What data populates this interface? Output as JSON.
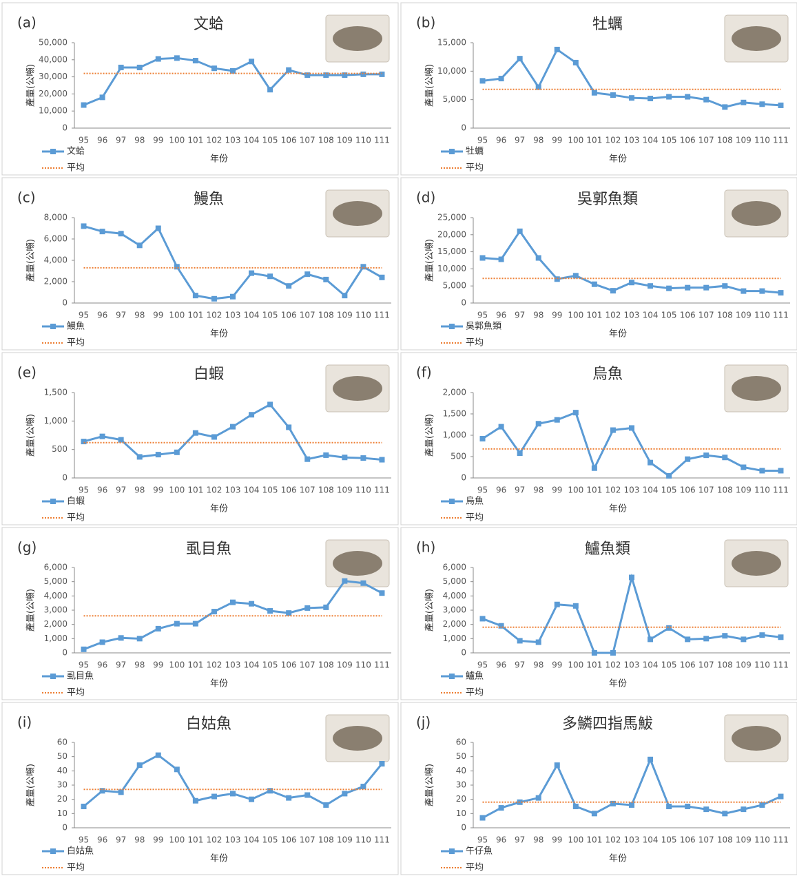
{
  "chart_data": [
    {
      "type": "line",
      "panel": "(a)",
      "title": "文蛤",
      "xlabel": "年份",
      "ylabel": "產量(公噸)",
      "categories": [
        "95",
        "96",
        "97",
        "98",
        "99",
        "100",
        "101",
        "102",
        "103",
        "104",
        "105",
        "106",
        "107",
        "108",
        "109",
        "110",
        "111"
      ],
      "series": [
        {
          "name": "文蛤",
          "color": "#5b9bd5",
          "style": "solid",
          "values": [
            13500,
            18000,
            35500,
            35500,
            40500,
            41000,
            39500,
            35000,
            33500,
            39000,
            22500,
            34000,
            31000,
            31000,
            31000,
            31500,
            31500
          ]
        },
        {
          "name": "平均",
          "color": "#ed7d31",
          "style": "dotted",
          "values": [
            32000,
            32000,
            32000,
            32000,
            32000,
            32000,
            32000,
            32000,
            32000,
            32000,
            32000,
            32000,
            32000,
            32000,
            32000,
            32000,
            32000
          ]
        }
      ],
      "ylim": [
        0,
        50000
      ],
      "yticks": [
        0,
        {
          "value": 10000,
          "label": "10,000"
        },
        {
          "value": 20000,
          "label": "20,000"
        },
        {
          "value": 30000,
          "label": "30,000"
        },
        {
          "value": 40000,
          "label": "40,000"
        },
        {
          "value": 50000,
          "label": "50,000"
        }
      ]
    },
    {
      "type": "line",
      "panel": "(b)",
      "title": "牡蠣",
      "xlabel": "年份",
      "ylabel": "產量(公噸)",
      "categories": [
        "95",
        "96",
        "97",
        "98",
        "99",
        "100",
        "101",
        "102",
        "103",
        "104",
        "105",
        "106",
        "107",
        "108",
        "109",
        "110",
        "111"
      ],
      "series": [
        {
          "name": "牡蠣",
          "color": "#5b9bd5",
          "style": "solid",
          "values": [
            8300,
            8700,
            12200,
            7200,
            13800,
            11500,
            6200,
            5800,
            5300,
            5200,
            5500,
            5500,
            5000,
            3700,
            4500,
            4200,
            4000
          ]
        },
        {
          "name": "平均",
          "color": "#ed7d31",
          "style": "dotted",
          "values": [
            6800,
            6800,
            6800,
            6800,
            6800,
            6800,
            6800,
            6800,
            6800,
            6800,
            6800,
            6800,
            6800,
            6800,
            6800,
            6800,
            6800
          ]
        }
      ],
      "ylim": [
        0,
        15000
      ],
      "yticks": [
        0,
        {
          "value": 5000,
          "label": "5,000"
        },
        {
          "value": 10000,
          "label": "10,000"
        },
        {
          "value": 15000,
          "label": "15,000"
        }
      ]
    },
    {
      "type": "line",
      "panel": "(c)",
      "title": "鰻魚",
      "xlabel": "年份",
      "ylabel": "產量(公噸)",
      "categories": [
        "95",
        "96",
        "97",
        "98",
        "99",
        "100",
        "101",
        "102",
        "103",
        "104",
        "105",
        "106",
        "107",
        "108",
        "109",
        "110",
        "111"
      ],
      "series": [
        {
          "name": "鰻魚",
          "color": "#5b9bd5",
          "style": "solid",
          "values": [
            7200,
            6700,
            6500,
            5400,
            7000,
            3400,
            700,
            400,
            600,
            2800,
            2500,
            1600,
            2700,
            2200,
            700,
            3400,
            2400
          ]
        },
        {
          "name": "平均",
          "color": "#ed7d31",
          "style": "dotted",
          "values": [
            3300,
            3300,
            3300,
            3300,
            3300,
            3300,
            3300,
            3300,
            3300,
            3300,
            3300,
            3300,
            3300,
            3300,
            3300,
            3300,
            3300
          ]
        }
      ],
      "ylim": [
        0,
        8000
      ],
      "yticks": [
        0,
        {
          "value": 2000,
          "label": "2,000"
        },
        {
          "value": 4000,
          "label": "4,000"
        },
        {
          "value": 6000,
          "label": "6,000"
        },
        {
          "value": 8000,
          "label": "8,000"
        }
      ]
    },
    {
      "type": "line",
      "panel": "(d)",
      "title": "吳郭魚類",
      "xlabel": "年份",
      "ylabel": "產量(公噸)",
      "categories": [
        "95",
        "96",
        "97",
        "98",
        "99",
        "100",
        "101",
        "102",
        "103",
        "104",
        "105",
        "106",
        "107",
        "108",
        "109",
        "110",
        "111"
      ],
      "series": [
        {
          "name": "吳郭魚類",
          "color": "#5b9bd5",
          "style": "solid",
          "values": [
            13200,
            12800,
            21000,
            13200,
            7000,
            8000,
            5500,
            3600,
            6000,
            5000,
            4300,
            4500,
            4500,
            5000,
            3500,
            3500,
            3000
          ]
        },
        {
          "name": "平均",
          "color": "#ed7d31",
          "style": "dotted",
          "values": [
            7200,
            7200,
            7200,
            7200,
            7200,
            7200,
            7200,
            7200,
            7200,
            7200,
            7200,
            7200,
            7200,
            7200,
            7200,
            7200,
            7200
          ]
        }
      ],
      "ylim": [
        0,
        25000
      ],
      "yticks": [
        0,
        {
          "value": 5000,
          "label": "5,000"
        },
        {
          "value": 10000,
          "label": "10,000"
        },
        {
          "value": 15000,
          "label": "15,000"
        },
        {
          "value": 20000,
          "label": "20,000"
        },
        {
          "value": 25000,
          "label": "25,000"
        }
      ]
    },
    {
      "type": "line",
      "panel": "(e)",
      "title": "白蝦",
      "xlabel": "年份",
      "ylabel": "產量(公噸)",
      "categories": [
        "95",
        "96",
        "97",
        "98",
        "99",
        "100",
        "101",
        "102",
        "103",
        "104",
        "105",
        "106",
        "107",
        "108",
        "109",
        "110",
        "111"
      ],
      "series": [
        {
          "name": "白蝦",
          "color": "#5b9bd5",
          "style": "solid",
          "values": [
            640,
            730,
            670,
            370,
            410,
            450,
            790,
            720,
            900,
            1110,
            1290,
            890,
            330,
            400,
            360,
            350,
            320
          ]
        },
        {
          "name": "平均",
          "color": "#ed7d31",
          "style": "dotted",
          "values": [
            620,
            620,
            620,
            620,
            620,
            620,
            620,
            620,
            620,
            620,
            620,
            620,
            620,
            620,
            620,
            620,
            620
          ]
        }
      ],
      "ylim": [
        0,
        1500
      ],
      "yticks": [
        0,
        500,
        {
          "value": 1000,
          "label": "1,000"
        },
        {
          "value": 1500,
          "label": "1,500"
        }
      ]
    },
    {
      "type": "line",
      "panel": "(f)",
      "title": "烏魚",
      "xlabel": "年份",
      "ylabel": "產量(公噸)",
      "categories": [
        "95",
        "96",
        "97",
        "98",
        "99",
        "100",
        "101",
        "102",
        "103",
        "104",
        "105",
        "106",
        "107",
        "108",
        "109",
        "110",
        "111"
      ],
      "series": [
        {
          "name": "烏魚",
          "color": "#5b9bd5",
          "style": "solid",
          "values": [
            920,
            1200,
            580,
            1270,
            1360,
            1530,
            230,
            1120,
            1170,
            360,
            50,
            440,
            530,
            480,
            250,
            170,
            170
          ]
        },
        {
          "name": "平均",
          "color": "#ed7d31",
          "style": "dotted",
          "values": [
            680,
            680,
            680,
            680,
            680,
            680,
            680,
            680,
            680,
            680,
            680,
            680,
            680,
            680,
            680,
            680,
            680
          ]
        }
      ],
      "ylim": [
        0,
        2000
      ],
      "yticks": [
        0,
        500,
        {
          "value": 1000,
          "label": "1,000"
        },
        {
          "value": 1500,
          "label": "1,500"
        },
        {
          "value": 2000,
          "label": "2,000"
        }
      ]
    },
    {
      "type": "line",
      "panel": "(g)",
      "title": "虱目魚",
      "xlabel": "年份",
      "ylabel": "產量(公噸)",
      "categories": [
        "95",
        "96",
        "97",
        "98",
        "99",
        "100",
        "101",
        "102",
        "103",
        "104",
        "105",
        "106",
        "107",
        "108",
        "109",
        "110",
        "111"
      ],
      "series": [
        {
          "name": "虱目魚",
          "color": "#5b9bd5",
          "style": "solid",
          "values": [
            250,
            750,
            1050,
            1000,
            1700,
            2050,
            2050,
            2900,
            3550,
            3450,
            2950,
            2800,
            3150,
            3200,
            5050,
            4900,
            4200
          ]
        },
        {
          "name": "平均",
          "color": "#ed7d31",
          "style": "dotted",
          "values": [
            2600,
            2600,
            2600,
            2600,
            2600,
            2600,
            2600,
            2600,
            2600,
            2600,
            2600,
            2600,
            2600,
            2600,
            2600,
            2600,
            2600
          ]
        }
      ],
      "ylim": [
        0,
        6000
      ],
      "yticks": [
        0,
        {
          "value": 1000,
          "label": "1,000"
        },
        {
          "value": 2000,
          "label": "2,000"
        },
        {
          "value": 3000,
          "label": "3,000"
        },
        {
          "value": 4000,
          "label": "4,000"
        },
        {
          "value": 5000,
          "label": "5,000"
        },
        {
          "value": 6000,
          "label": "6,000"
        }
      ]
    },
    {
      "type": "line",
      "panel": "(h)",
      "title": "鱸魚類",
      "xlabel": "年份",
      "ylabel": "產量(公噸)",
      "categories": [
        "95",
        "96",
        "97",
        "98",
        "99",
        "100",
        "101",
        "102",
        "103",
        "104",
        "105",
        "106",
        "107",
        "108",
        "109",
        "110",
        "111"
      ],
      "series": [
        {
          "name": "鱸魚",
          "color": "#5b9bd5",
          "style": "solid",
          "values": [
            2400,
            1900,
            850,
            750,
            3400,
            3300,
            0,
            0,
            5300,
            950,
            1750,
            950,
            1000,
            1200,
            950,
            1250,
            1100
          ]
        },
        {
          "name": "平均",
          "color": "#ed7d31",
          "style": "dotted",
          "values": [
            1800,
            1800,
            1800,
            1800,
            1800,
            1800,
            1800,
            1800,
            1800,
            1800,
            1800,
            1800,
            1800,
            1800,
            1800,
            1800,
            1800
          ]
        }
      ],
      "ylim": [
        0,
        6000
      ],
      "yticks": [
        0,
        {
          "value": 1000,
          "label": "1,000"
        },
        {
          "value": 2000,
          "label": "2,000"
        },
        {
          "value": 3000,
          "label": "3,000"
        },
        {
          "value": 4000,
          "label": "4,000"
        },
        {
          "value": 5000,
          "label": "5,000"
        },
        {
          "value": 6000,
          "label": "6,000"
        }
      ]
    },
    {
      "type": "line",
      "panel": "(i)",
      "title": "白姑魚",
      "xlabel": "年份",
      "ylabel": "產量(公噸)",
      "categories": [
        "95",
        "96",
        "97",
        "98",
        "99",
        "100",
        "101",
        "102",
        "103",
        "104",
        "105",
        "106",
        "107",
        "108",
        "109",
        "110",
        "111"
      ],
      "series": [
        {
          "name": "白姑魚",
          "color": "#5b9bd5",
          "style": "solid",
          "values": [
            15,
            26,
            25,
            44,
            51,
            41,
            19,
            22,
            24,
            20,
            26,
            21,
            23,
            16,
            24,
            29,
            45
          ]
        },
        {
          "name": "平均",
          "color": "#ed7d31",
          "style": "dotted",
          "values": [
            27,
            27,
            27,
            27,
            27,
            27,
            27,
            27,
            27,
            27,
            27,
            27,
            27,
            27,
            27,
            27,
            27
          ]
        }
      ],
      "ylim": [
        0,
        60
      ],
      "yticks": [
        0,
        10,
        20,
        30,
        40,
        50,
        60
      ]
    },
    {
      "type": "line",
      "panel": "(j)",
      "title": "多鱗四指馬鮁",
      "xlabel": "年份",
      "ylabel": "產量(公噸)",
      "categories": [
        "95",
        "96",
        "97",
        "98",
        "99",
        "100",
        "101",
        "102",
        "103",
        "104",
        "105",
        "106",
        "107",
        "108",
        "109",
        "110",
        "111"
      ],
      "series": [
        {
          "name": "午仔魚",
          "color": "#5b9bd5",
          "style": "solid",
          "values": [
            7,
            14,
            18,
            21,
            44,
            15,
            10,
            17,
            16,
            48,
            15,
            15,
            13,
            10,
            13,
            16,
            22
          ]
        },
        {
          "name": "平均",
          "color": "#ed7d31",
          "style": "dotted",
          "values": [
            18,
            18,
            18,
            18,
            18,
            18,
            18,
            18,
            18,
            18,
            18,
            18,
            18,
            18,
            18,
            18,
            18
          ]
        }
      ],
      "ylim": [
        0,
        60
      ],
      "yticks": [
        0,
        10,
        20,
        30,
        40,
        50,
        60
      ]
    }
  ]
}
